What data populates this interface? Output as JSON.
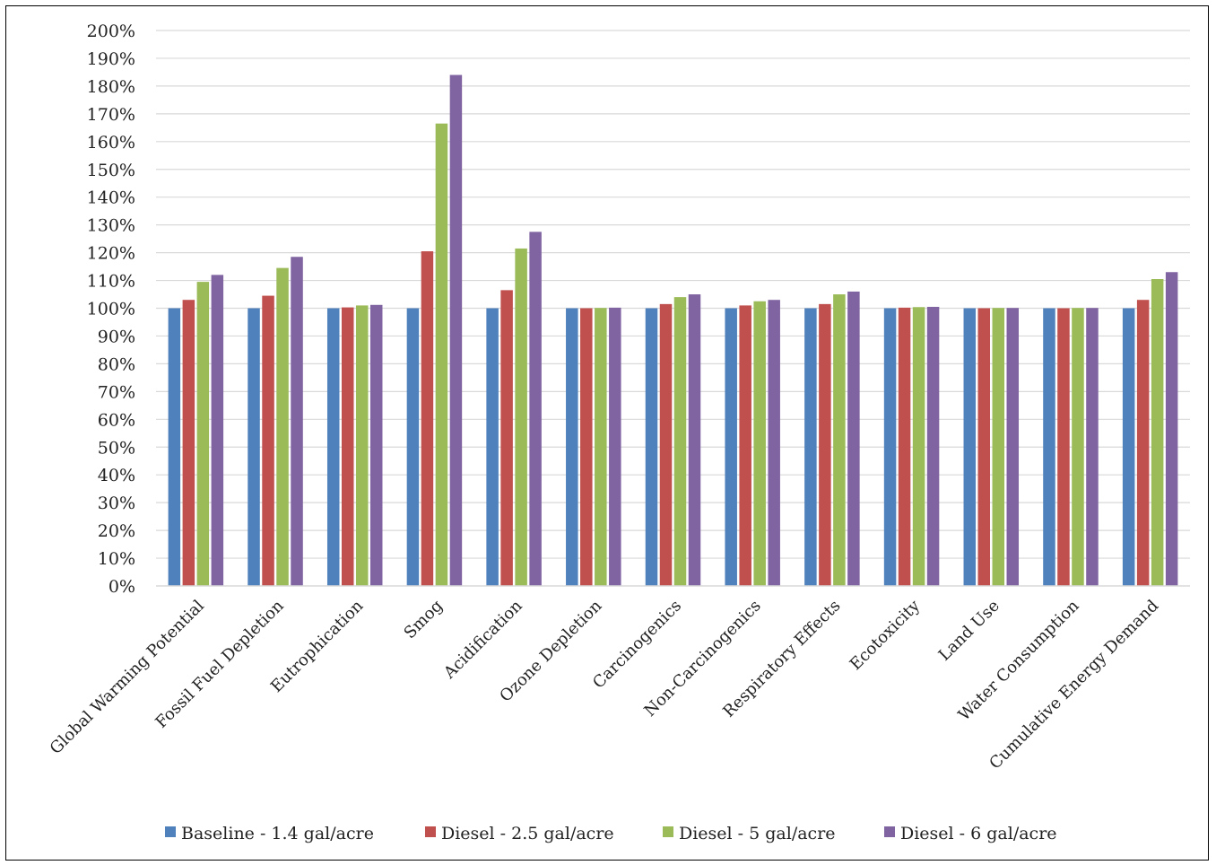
{
  "chart_data": {
    "type": "bar",
    "title": "",
    "xlabel": "",
    "ylabel": "",
    "ylim": [
      0,
      200
    ],
    "y_ticks": [
      "0%",
      "10%",
      "20%",
      "30%",
      "40%",
      "50%",
      "60%",
      "70%",
      "80%",
      "90%",
      "100%",
      "110%",
      "120%",
      "130%",
      "140%",
      "150%",
      "160%",
      "170%",
      "180%",
      "190%",
      "200%"
    ],
    "grid": true,
    "legend_position": "bottom",
    "categories": [
      "Global Warming Potential",
      "Fossil Fuel Depletion",
      "Eutrophication",
      "Smog",
      "Acidification",
      "Ozone Depletion",
      "Carcinogenics",
      "Non-Carcinogenics",
      "Respiratory Effects",
      "Ecotoxicity",
      "Land Use",
      "Water Consumption",
      "Cumulative Energy Demand"
    ],
    "series": [
      {
        "name": "Baseline - 1.4 gal/acre",
        "color": "#4f81bd",
        "values": [
          100,
          100,
          100,
          100,
          100,
          100,
          100,
          100,
          100,
          100,
          100,
          100,
          100
        ]
      },
      {
        "name": "Diesel - 2.5 gal/acre",
        "color": "#c0504d",
        "values": [
          103,
          104.5,
          100.3,
          120.5,
          106.5,
          100,
          101.5,
          101,
          101.5,
          100.2,
          100,
          100,
          103
        ]
      },
      {
        "name": "Diesel - 5 gal/acre",
        "color": "#9bbb59",
        "values": [
          109.5,
          114.5,
          101,
          166.5,
          121.5,
          100.1,
          104,
          102.5,
          105,
          100.4,
          100.1,
          100.1,
          110.5
        ]
      },
      {
        "name": "Diesel - 6 gal/acre",
        "color": "#8064a2",
        "values": [
          112,
          118.5,
          101.2,
          184,
          127.5,
          100.2,
          105,
          103,
          106,
          100.5,
          100.1,
          100.1,
          113
        ]
      }
    ]
  }
}
